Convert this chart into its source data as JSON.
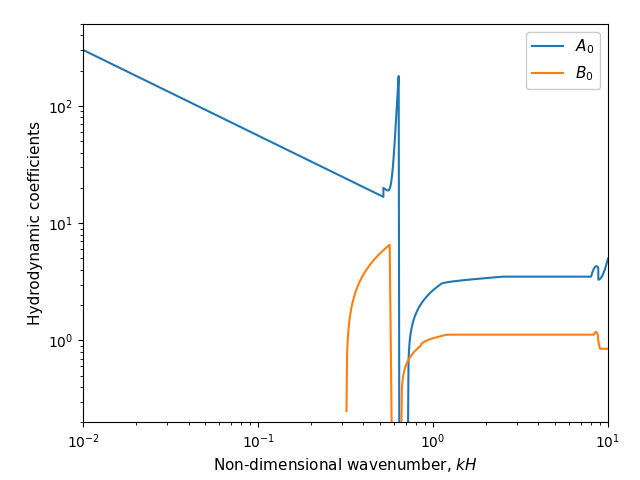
{
  "title": "",
  "xlabel": "Non-dimensional wavenumber, $kH$",
  "ylabel": "Hydrodynamic coefficients",
  "legend": [
    "$A_0$",
    "$B_0$"
  ],
  "line_colors": [
    "#1f77b4",
    "#ff7f0e"
  ],
  "xlim": [
    0.01,
    10
  ],
  "ylim": [
    0.2,
    500
  ],
  "figsize": [
    6.4,
    4.8
  ],
  "dpi": 100
}
